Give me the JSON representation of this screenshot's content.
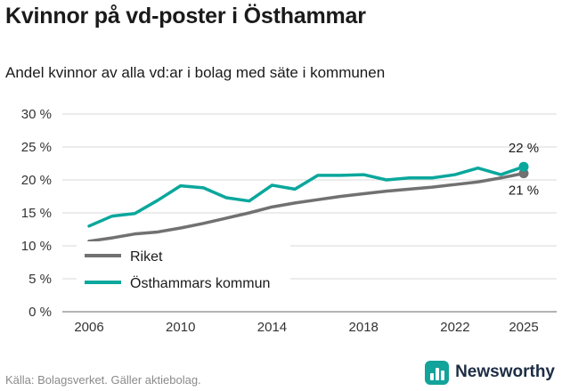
{
  "header": {
    "title": "Kvinnor på vd-poster i Östhammar",
    "subtitle": "Andel kvinnor av alla vd:ar i bolag med säte i kommunen"
  },
  "footer": {
    "source": "Källa: Bolagsverket. Gäller aktiebolag.",
    "brand": "Newsworthy"
  },
  "colors": {
    "teal": "#0AA79C",
    "gray": "#717171",
    "grid": "#d8d8d8",
    "axis": "#9a9a9a",
    "tick_text": "#333333",
    "text": "#1a1a1a"
  },
  "chart_data": {
    "type": "line",
    "x": [
      2006,
      2007,
      2008,
      2009,
      2010,
      2011,
      2012,
      2013,
      2014,
      2015,
      2016,
      2017,
      2018,
      2019,
      2020,
      2021,
      2022,
      2023,
      2024,
      2025
    ],
    "x_ticks": [
      2006,
      2010,
      2014,
      2018,
      2022,
      2025
    ],
    "y_ticks": [
      0,
      5,
      10,
      15,
      20,
      25,
      30
    ],
    "y_tick_suffix": " %",
    "ylim": [
      0,
      30
    ],
    "grid": true,
    "legend_position": "bottom-left-inside",
    "series": [
      {
        "name": "Riket",
        "color_key": "gray",
        "values": [
          10.7,
          11.2,
          11.8,
          12.1,
          12.7,
          13.4,
          14.2,
          15.0,
          15.9,
          16.5,
          17.0,
          17.5,
          17.9,
          18.3,
          18.6,
          18.9,
          19.3,
          19.7,
          20.3,
          21.0
        ]
      },
      {
        "name": "Östhammars kommun",
        "color_key": "teal",
        "values": [
          13.0,
          14.5,
          14.9,
          16.9,
          19.1,
          18.8,
          17.3,
          16.8,
          19.2,
          18.6,
          20.7,
          20.7,
          20.8,
          20.0,
          20.3,
          20.3,
          20.8,
          21.8,
          20.8,
          22.0
        ]
      }
    ],
    "annotations": [
      {
        "text": "22 %",
        "series": "Östhammars kommun",
        "position": "above"
      },
      {
        "text": "21 %",
        "series": "Riket",
        "position": "below"
      }
    ]
  }
}
